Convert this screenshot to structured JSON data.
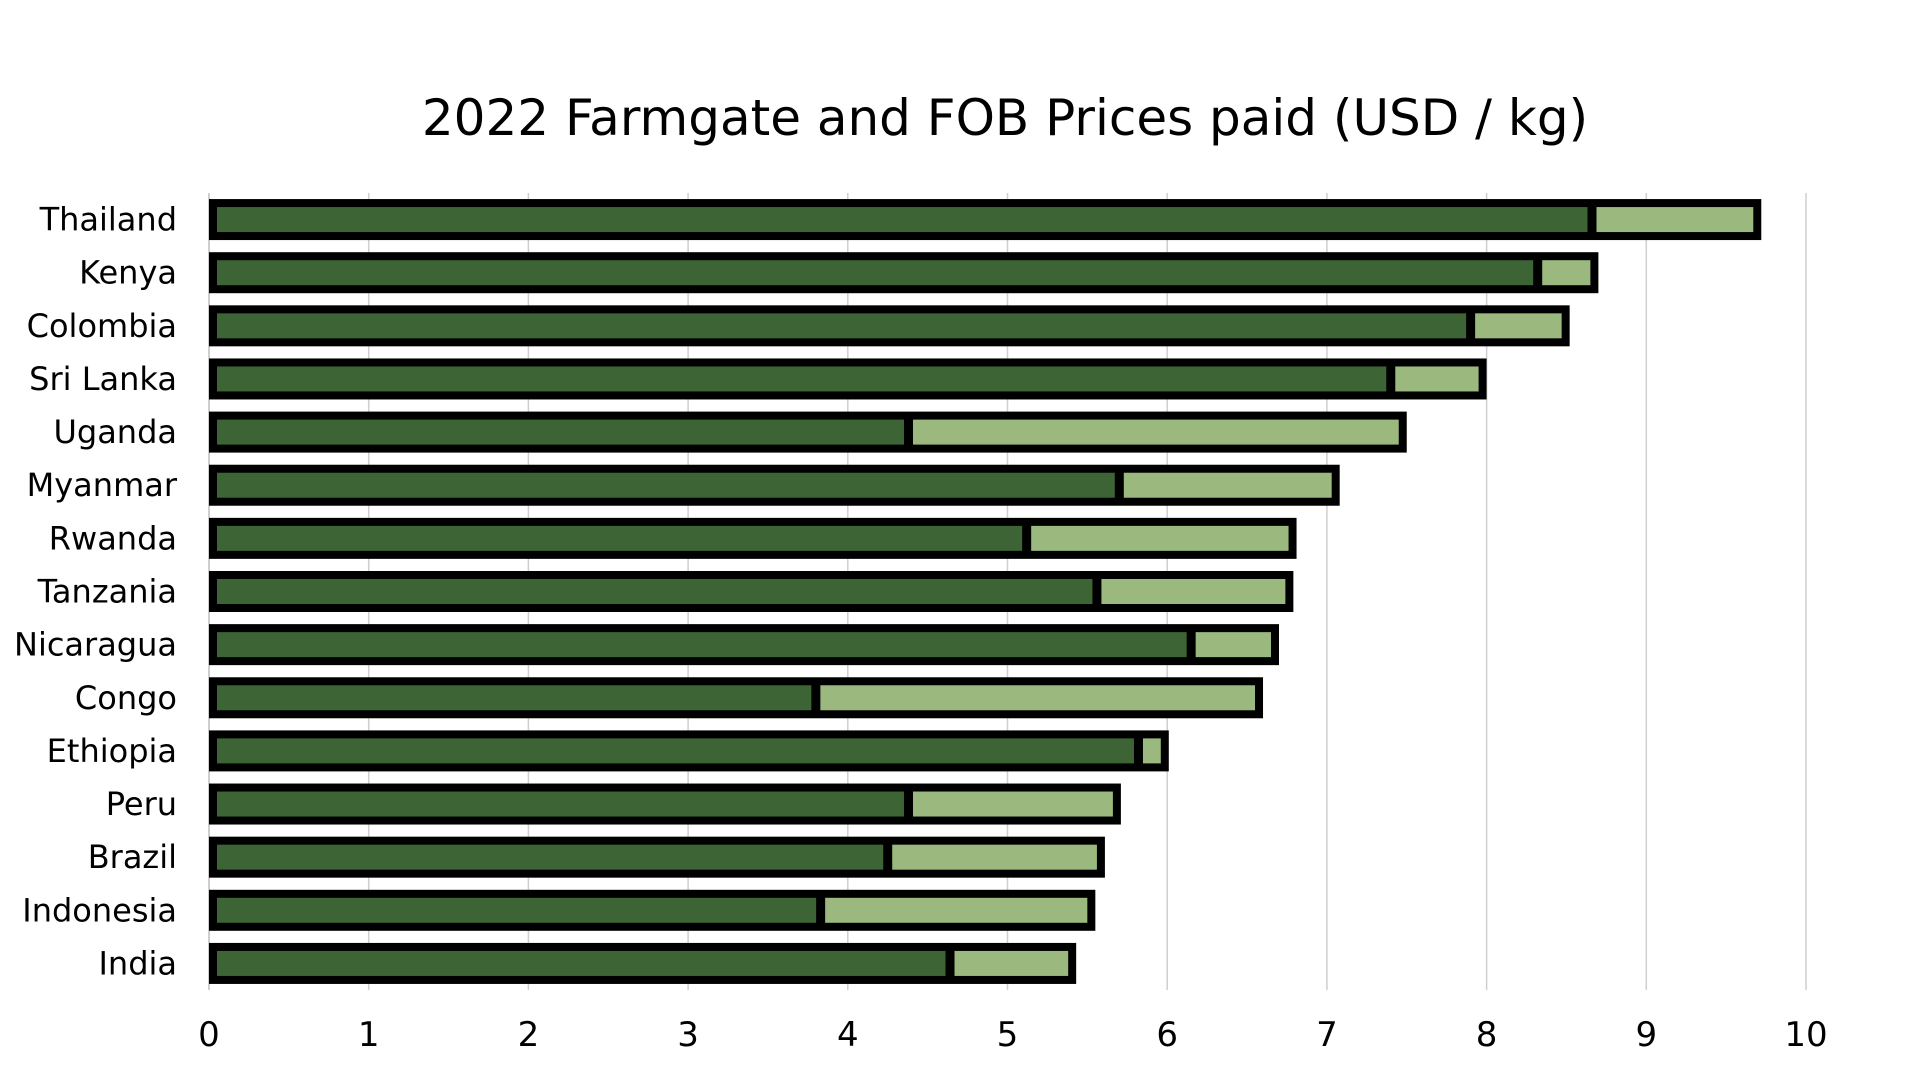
{
  "chart_data": {
    "type": "bar",
    "orientation": "horizontal",
    "stacked": true,
    "title": "2022 Farmgate and FOB Prices paid (USD / kg)",
    "xlabel": "",
    "ylabel": "",
    "xlim": [
      0,
      10
    ],
    "x_ticks": [
      "0",
      "1",
      "2",
      "3",
      "4",
      "5",
      "6",
      "7",
      "8",
      "9",
      "10"
    ],
    "grid": "vertical",
    "legend": "none",
    "categories": [
      "Thailand",
      "Kenya",
      "Colombia",
      "Sri Lanka",
      "Uganda",
      "Myanmar",
      "Rwanda",
      "Tanzania",
      "Nicaragua",
      "Congo",
      "Ethiopia",
      "Peru",
      "Brazil",
      "Indonesia",
      "India"
    ],
    "series": [
      {
        "color": "#3d6435",
        "values": [
          8.66,
          8.32,
          7.9,
          7.4,
          4.38,
          5.7,
          5.12,
          5.56,
          6.15,
          3.8,
          5.82,
          4.38,
          4.25,
          3.83,
          4.64
        ]
      },
      {
        "color": "#9bb97f",
        "values": [
          1.06,
          0.38,
          0.62,
          0.6,
          3.12,
          1.38,
          1.69,
          1.23,
          0.55,
          2.8,
          0.19,
          1.33,
          1.36,
          1.72,
          0.79
        ]
      }
    ],
    "outline_color": "#000000",
    "grid_color": "#cfcfcf"
  }
}
